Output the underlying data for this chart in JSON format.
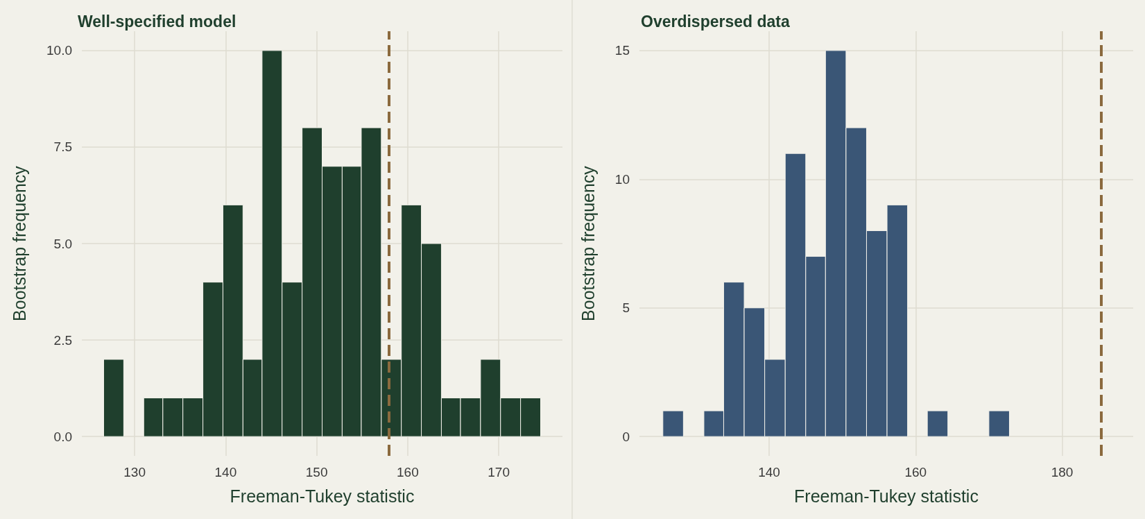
{
  "chart_data": [
    {
      "type": "histogram",
      "title": "Well-specified model",
      "xlabel": "Freeman-Tukey statistic",
      "ylabel": "Bootstrap frequency",
      "color": "#1f3f2d",
      "bins": [
        126.6,
        128.8,
        131.0,
        133.1,
        135.3,
        137.5,
        139.7,
        141.9,
        144.0,
        146.2,
        148.4,
        150.6,
        152.8,
        154.9,
        157.1,
        159.3,
        161.5,
        163.7,
        165.8,
        168.0,
        170.2,
        172.4,
        174.6
      ],
      "values": [
        2,
        0,
        1,
        1,
        1,
        4,
        6,
        2,
        10,
        4,
        8,
        7,
        7,
        8,
        2,
        6,
        5,
        1,
        1,
        2,
        1,
        1
      ],
      "xlim": [
        124.2,
        177.0
      ],
      "xticks": [
        130,
        140,
        150,
        160,
        170
      ],
      "ylim": [
        -0.5,
        10.5
      ],
      "yticks": [
        {
          "value": 0,
          "label": "0.0"
        },
        2.5,
        {
          "value": 5,
          "label": "5.0"
        },
        7.5,
        {
          "value": 10,
          "label": "10.0"
        }
      ],
      "ref_lines": [
        {
          "axis": "x",
          "value": 157.9,
          "color": "#8b6a3e",
          "line_style": "dashed"
        }
      ],
      "grid": true
    },
    {
      "type": "histogram",
      "title": "Overdispersed data",
      "xlabel": "Freeman-Tukey statistic",
      "ylabel": "Bootstrap frequency",
      "color": "#3a5676",
      "bins": [
        125.5,
        128.3,
        131.1,
        133.8,
        136.6,
        139.4,
        142.2,
        145.0,
        147.7,
        150.5,
        153.3,
        156.1,
        158.9,
        161.6,
        164.4,
        170.0,
        172.8
      ],
      "values": [
        1,
        0,
        1,
        6,
        5,
        3,
        11,
        7,
        15,
        12,
        8,
        9,
        0,
        1,
        0,
        1
      ],
      "xlim": [
        122.3,
        189.7
      ],
      "xticks": [
        140,
        160,
        180
      ],
      "ylim": [
        -0.75,
        15.75
      ],
      "yticks": [
        0,
        5,
        10,
        15
      ],
      "ref_lines": [
        {
          "axis": "x",
          "value": 185.3,
          "color": "#8b6a3e",
          "line_style": "dashed"
        }
      ],
      "grid": true
    }
  ]
}
